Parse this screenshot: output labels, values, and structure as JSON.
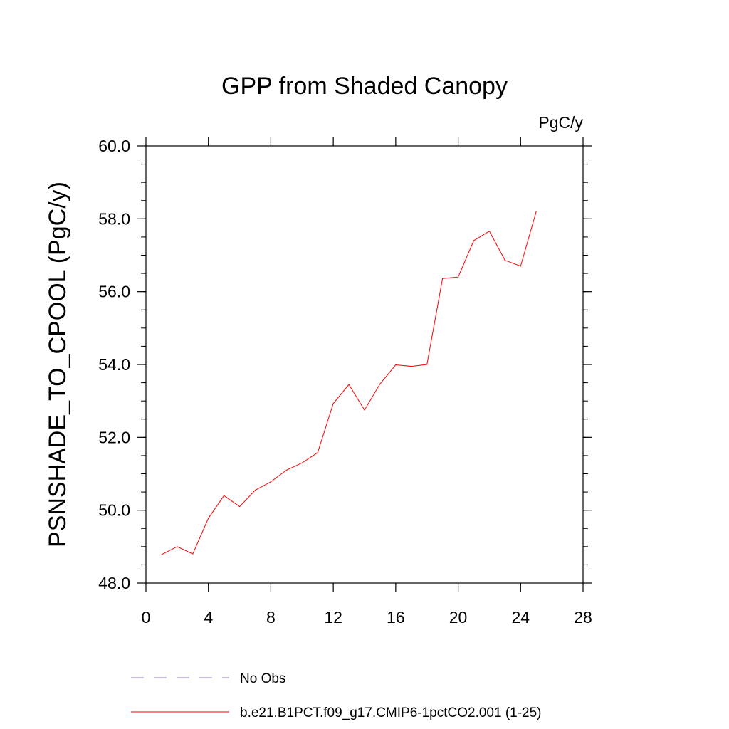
{
  "chart_data": {
    "type": "line",
    "title": "GPP from Shaded Canopy",
    "units": "PgC/y",
    "ylabel": "PSNSHADE_TO_CPOOL  (PgC/y)",
    "xlabel": "",
    "xlim": [
      0,
      28
    ],
    "ylim": [
      48.0,
      60.0
    ],
    "x_ticks": [
      0,
      4,
      8,
      12,
      16,
      20,
      24,
      28
    ],
    "y_ticks": [
      "48.0",
      "50.0",
      "52.0",
      "54.0",
      "56.0",
      "58.0",
      "60.0"
    ],
    "grid": false,
    "legend_position": "bottom",
    "series": [
      {
        "name": "No Obs",
        "color": "#7f7fcf",
        "style": "dashed",
        "x": [],
        "values": []
      },
      {
        "name": "b.e21.B1PCT.f09_g17.CMIP6-1pctCO2.001 (1-25)",
        "color": "#ff0000",
        "style": "solid",
        "x": [
          1,
          2,
          3,
          4,
          5,
          6,
          7,
          8,
          9,
          10,
          11,
          12,
          13,
          14,
          15,
          16,
          17,
          18,
          19,
          20,
          21,
          22,
          23,
          24,
          25
        ],
        "values": [
          48.78,
          49.0,
          48.8,
          49.78,
          50.4,
          50.1,
          50.55,
          50.78,
          51.1,
          51.3,
          51.58,
          52.93,
          53.45,
          52.75,
          53.47,
          53.99,
          53.95,
          54.0,
          56.36,
          56.4,
          57.4,
          57.66,
          56.86,
          56.7,
          58.2
        ]
      }
    ]
  }
}
